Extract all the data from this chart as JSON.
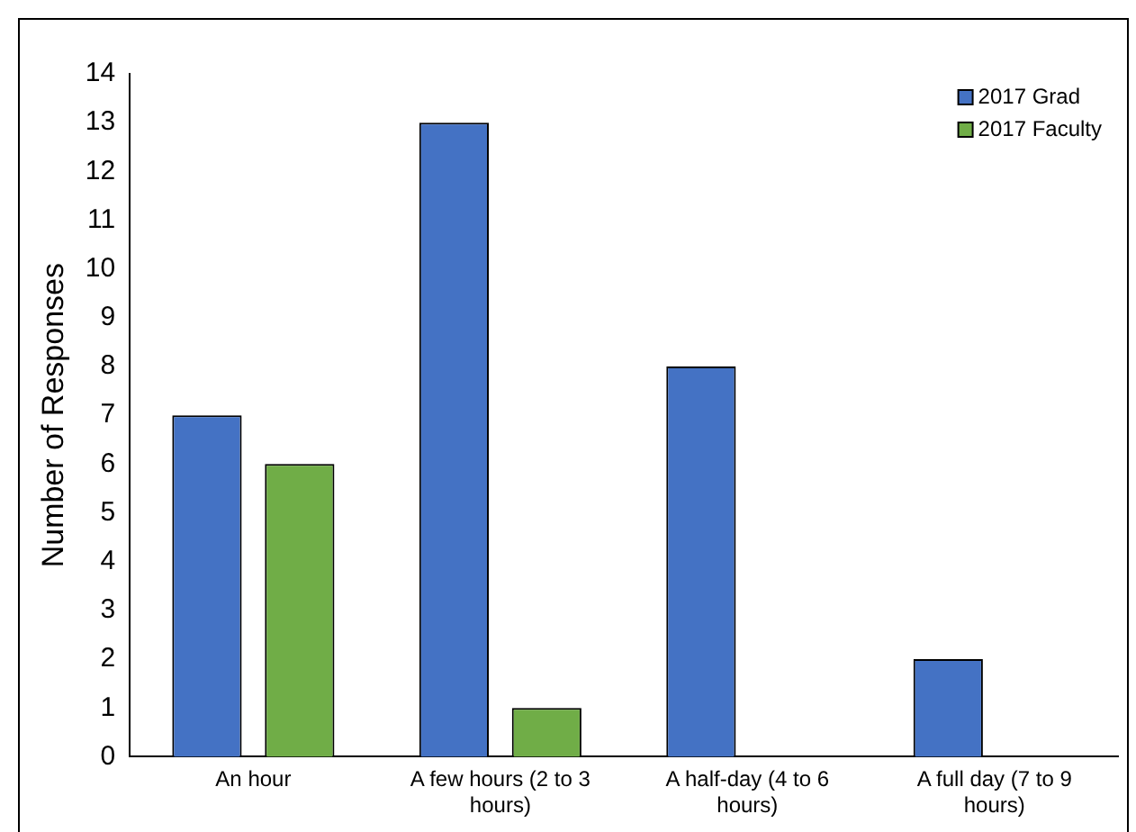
{
  "chart_data": {
    "type": "bar",
    "ylabel": "Number of Responses",
    "categories": [
      "An hour",
      "A few hours (2 to 3 hours)",
      "A half-day (4 to 6 hours)",
      "A full day (7 to 9 hours)"
    ],
    "series": [
      {
        "name": "2017 Grad",
        "color": "#4472c4",
        "values": [
          7,
          13,
          8,
          2
        ]
      },
      {
        "name": "2017 Faculty",
        "color": "#70ad47",
        "values": [
          6,
          1,
          0,
          0
        ]
      }
    ],
    "ylim": [
      0,
      14
    ],
    "yticks": [
      0,
      1,
      2,
      3,
      4,
      5,
      6,
      7,
      8,
      9,
      10,
      11,
      12,
      13,
      14
    ],
    "grid": false,
    "legend": "top right"
  }
}
